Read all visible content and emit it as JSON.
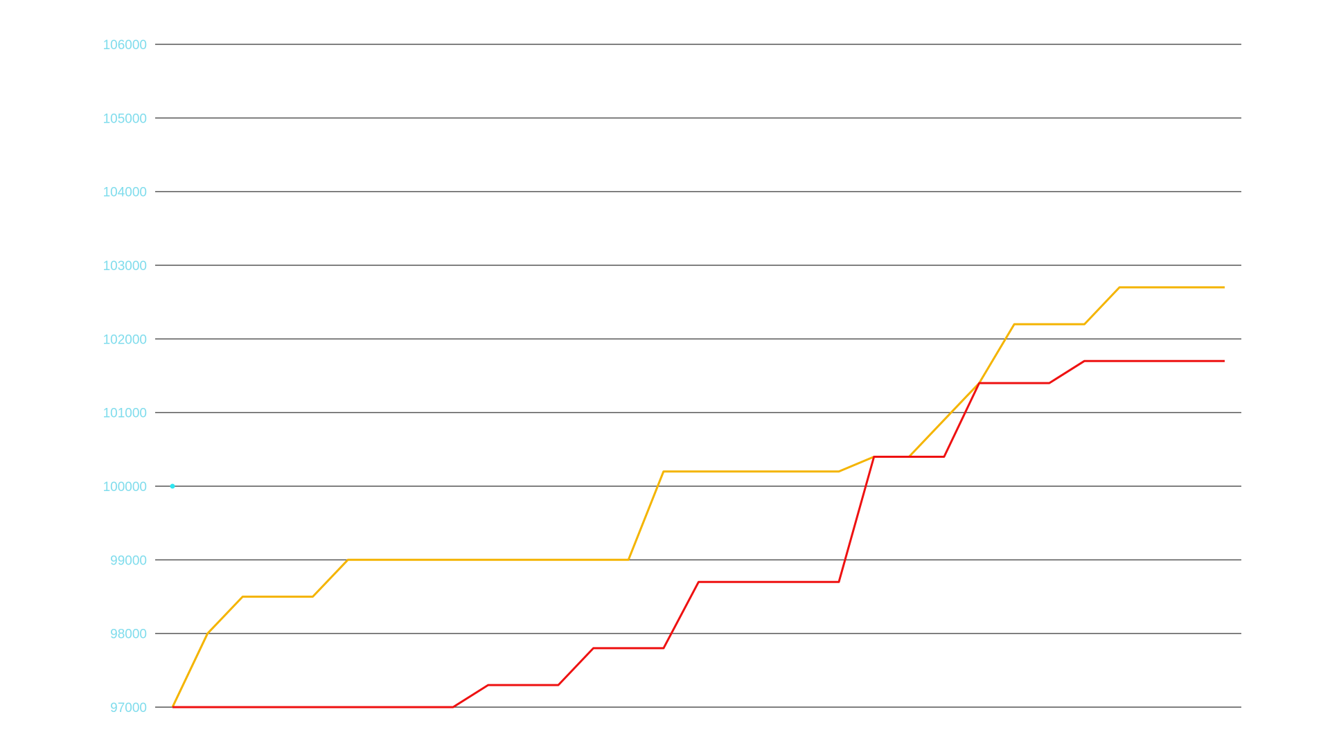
{
  "chart_data": {
    "type": "line",
    "title": "",
    "xlabel": "",
    "ylabel": "",
    "ylim": [
      97000,
      106000
    ],
    "yticks": [
      97000,
      98000,
      99000,
      100000,
      101000,
      102000,
      103000,
      104000,
      105000,
      106000
    ],
    "ytick_labels": [
      "97000",
      "98000",
      "99000",
      "100000",
      "101000",
      "102000",
      "103000",
      "104000",
      "105000",
      "106000"
    ],
    "grid": true,
    "legend": "none",
    "x": [
      0,
      1,
      2,
      3,
      4,
      5,
      6,
      7,
      8,
      9,
      10,
      11,
      12,
      13,
      14,
      15,
      16,
      17,
      18,
      19,
      20,
      21,
      22,
      23,
      24,
      25,
      26,
      27,
      28,
      29,
      30
    ],
    "series": [
      {
        "color": "#f4b400",
        "values": [
          97000,
          98000,
          98500,
          98500,
          98500,
          99000,
          99000,
          99000,
          99000,
          99000,
          99000,
          99000,
          99000,
          99000,
          100200,
          100200,
          100200,
          100200,
          100200,
          100200,
          100400,
          100400,
          100900,
          101400,
          102200,
          102200,
          102200,
          102700,
          102700,
          102700,
          102700
        ]
      },
      {
        "color": "#ee1111",
        "values": [
          97000,
          97000,
          97000,
          97000,
          97000,
          97000,
          97000,
          97000,
          97000,
          97300,
          97300,
          97300,
          97800,
          97800,
          97800,
          98700,
          98700,
          98700,
          98700,
          98700,
          100400,
          100400,
          100400,
          101400,
          101400,
          101400,
          101700,
          101700,
          101700,
          101700,
          101700
        ]
      }
    ],
    "colors": {
      "tick_label": "#7fdcec",
      "grid_line": "#555555",
      "marker": "#2ee6f0"
    },
    "marker_point": {
      "x": 0,
      "y": 100000
    }
  }
}
